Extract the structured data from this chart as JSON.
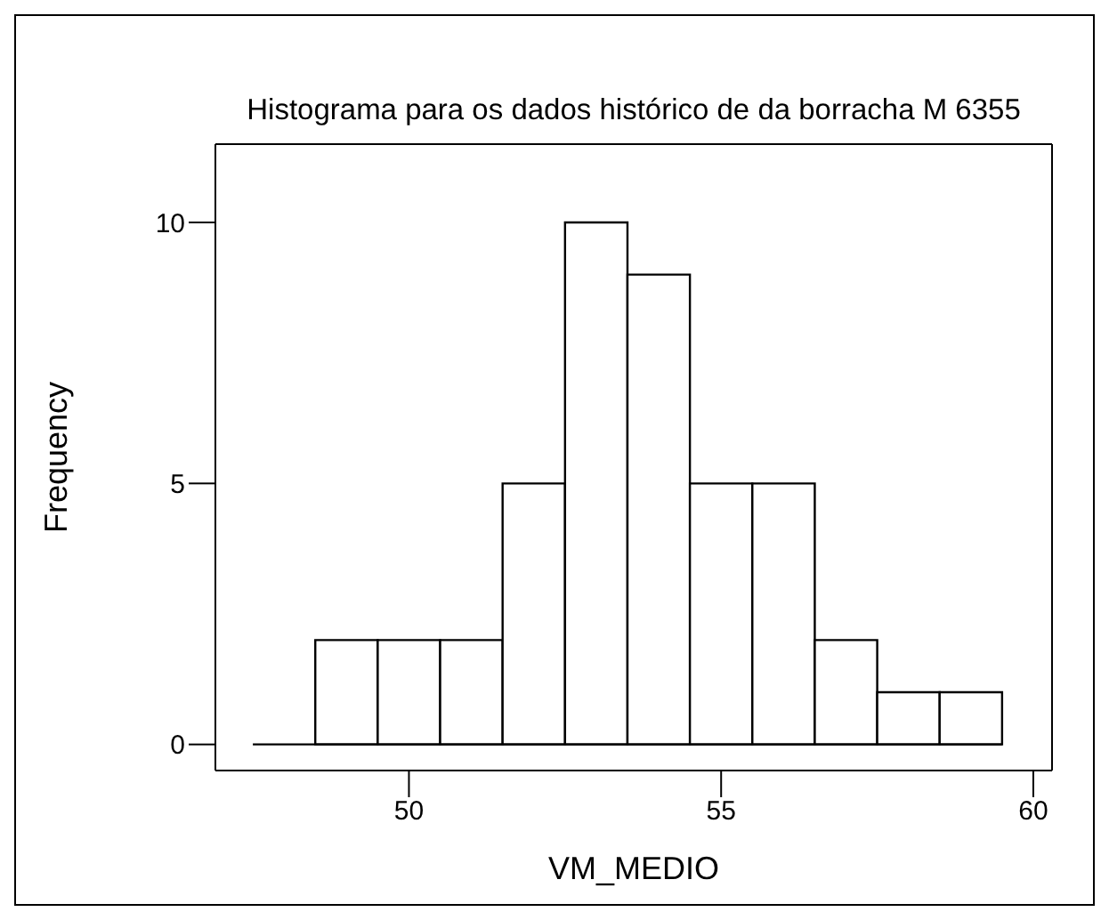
{
  "chart_data": {
    "type": "histogram",
    "title": "Histograma para os dados histórico de da borracha M 6355",
    "xlabel": "VM_MEDIO",
    "ylabel": "Frequency",
    "bins": [
      47.5,
      48.5,
      49.5,
      50.5,
      51.5,
      52.5,
      53.5,
      54.5,
      55.5,
      56.5,
      57.5,
      58.5,
      59.5
    ],
    "values": [
      0,
      2,
      2,
      2,
      5,
      10,
      9,
      5,
      5,
      2,
      1,
      1
    ],
    "color": "#ffffff",
    "xlim": [
      46.9,
      60.3
    ],
    "xticks": [
      50,
      55,
      60
    ],
    "ylim": [
      -0.5,
      11.5
    ],
    "yticks": [
      0,
      5,
      10
    ]
  }
}
